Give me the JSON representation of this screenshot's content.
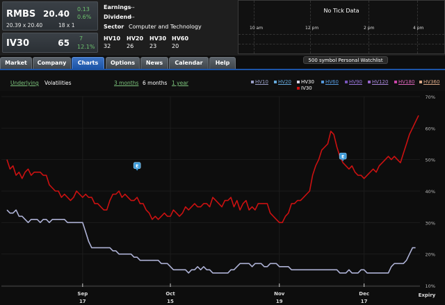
{
  "quote": {
    "rmbs": {
      "symbol": "RMBS",
      "price": "20.40",
      "change": "0.13",
      "change_pct": "0.6%",
      "bid_ask": "20.39 x 20.40",
      "size": "18 x 1"
    },
    "iv30": {
      "symbol": "IV30",
      "value": "65",
      "change": "7",
      "change_pct": "12.1%"
    }
  },
  "info": {
    "earnings_label": "Earnings",
    "earnings_value": "---",
    "dividend_label": "Dividend",
    "dividend_value": "---",
    "sector_label": "Sector",
    "sector_value": "Computer and Technology"
  },
  "hv": [
    {
      "label": "HV10",
      "value": "32"
    },
    {
      "label": "HV20",
      "value": "26"
    },
    {
      "label": "HV30",
      "value": "23"
    },
    {
      "label": "HV60",
      "value": "20"
    }
  ],
  "tick_chart": {
    "title": "No Tick Data",
    "times": [
      "10 am",
      "12 pm",
      "2 pm",
      "4 pm"
    ]
  },
  "watchlist_label": "500 symbol Personal Watchlist",
  "tabs": [
    "Market",
    "Company",
    "Charts",
    "Options",
    "News",
    "Calendar",
    "Help"
  ],
  "active_tab": "Charts",
  "chart_controls": {
    "underlying": "Underlying",
    "volatilities": "Volatilities",
    "range_3m": "3 months",
    "range_6m": "6 months",
    "range_1y": "1 year"
  },
  "legend": [
    {
      "label": "HV10",
      "color": "#9aa0c8"
    },
    {
      "label": "HV20",
      "color": "#66aadd"
    },
    {
      "label": "HV30",
      "color": "#d8d8e8"
    },
    {
      "label": "HV60",
      "color": "#5599dd"
    },
    {
      "label": "HV90",
      "color": "#7755bb"
    },
    {
      "label": "HV120",
      "color": "#9966cc"
    },
    {
      "label": "HV180",
      "color": "#cc44aa"
    },
    {
      "label": "HV360",
      "color": "#ddaa88"
    },
    {
      "label": "IV30",
      "color": "#cc1111"
    }
  ],
  "chart_data": {
    "type": "line",
    "x_tick_labels": [
      {
        "month": "Sep",
        "day": "17"
      },
      {
        "month": "Oct",
        "day": "15"
      },
      {
        "month": "Nov",
        "day": "19"
      },
      {
        "month": "Dec",
        "day": "17"
      }
    ],
    "expiry_label": "Expiry",
    "y_ticks": [
      "70%",
      "60%",
      "50%",
      "40%",
      "30%",
      "20%",
      "10%"
    ],
    "ylim": [
      10,
      70
    ],
    "earnings_markers": [
      {
        "label": "E",
        "index": 43,
        "y": 48
      },
      {
        "label": "E",
        "index": 111,
        "y": 51
      }
    ],
    "series": [
      {
        "name": "IV30",
        "color": "#cc1111",
        "values": [
          50,
          47,
          48,
          45,
          46,
          44,
          46,
          47,
          45,
          46,
          46,
          46,
          45,
          45,
          42,
          41,
          40,
          40,
          38,
          39,
          38,
          37,
          38,
          40,
          39,
          38,
          39,
          38,
          38,
          36,
          36,
          35,
          34,
          34,
          37,
          39,
          39,
          40,
          38,
          39,
          38,
          37,
          37,
          38,
          36,
          36,
          34,
          33,
          31,
          32,
          31,
          32,
          33,
          32,
          32,
          34,
          33,
          32,
          33,
          35,
          34,
          35,
          36,
          35,
          35,
          36,
          36,
          35,
          38,
          37,
          36,
          35,
          37,
          37,
          38,
          35,
          37,
          34,
          36,
          37,
          34,
          35,
          34,
          36,
          36,
          36,
          36,
          33,
          32,
          31,
          30,
          30,
          32,
          33,
          36,
          36,
          37,
          37,
          38,
          39,
          40,
          45,
          48,
          50,
          53,
          54,
          55,
          59,
          58,
          54,
          51,
          49,
          48,
          47,
          48,
          46,
          45,
          45,
          44,
          45,
          46,
          47,
          46,
          48,
          49,
          50,
          51,
          50,
          51,
          50,
          49,
          52,
          55,
          58,
          60,
          62,
          64
        ]
      },
      {
        "name": "HV30",
        "color": "#aeb2d6",
        "values": [
          34,
          33,
          33,
          34,
          32,
          32,
          31,
          30,
          31,
          31,
          31,
          30,
          31,
          31,
          30,
          31,
          31,
          31,
          31,
          31,
          30,
          30,
          30,
          30,
          30,
          30,
          27,
          24,
          22,
          22,
          22,
          22,
          22,
          22,
          22,
          21,
          21,
          20,
          20,
          20,
          20,
          20,
          19,
          19,
          18,
          18,
          18,
          18,
          18,
          18,
          18,
          17,
          17,
          17,
          16,
          15,
          15,
          15,
          15,
          15,
          14,
          15,
          15,
          16,
          15,
          16,
          15,
          15,
          14,
          14,
          14,
          14,
          14,
          14,
          15,
          15,
          16,
          17,
          17,
          17,
          17,
          16,
          17,
          17,
          17,
          16,
          16,
          17,
          17,
          17,
          16,
          16,
          16,
          16,
          15,
          15,
          15,
          15,
          15,
          15,
          15,
          15,
          15,
          15,
          15,
          15,
          15,
          15,
          15,
          15,
          14,
          14,
          14,
          15,
          14,
          14,
          14,
          15,
          15,
          14,
          14,
          14,
          14,
          14,
          14,
          14,
          14,
          16,
          17,
          17,
          17,
          17,
          18,
          20,
          22,
          22
        ]
      }
    ]
  }
}
